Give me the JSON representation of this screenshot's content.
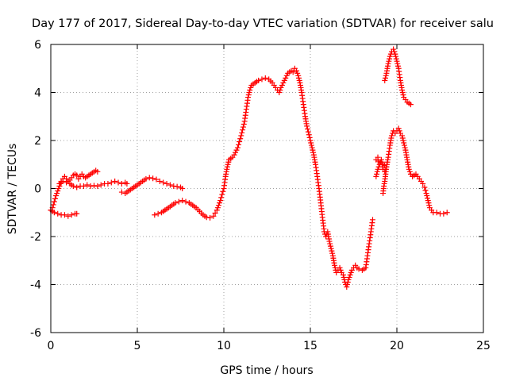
{
  "chart_data": {
    "type": "scatter",
    "title": "Day 177 of 2017, Sidereal Day-to-day VTEC variation (SDTVAR) for receiver salu",
    "xlabel": "GPS time / hours",
    "ylabel": "SDTVAR / TECUs",
    "xlim": [
      0,
      25
    ],
    "ylim": [
      -6,
      6
    ],
    "xticks": [
      0,
      5,
      10,
      15,
      20,
      25
    ],
    "yticks": [
      -6,
      -4,
      -2,
      0,
      2,
      4,
      6
    ],
    "grid": true,
    "marker": "plus",
    "color": "#ff0000",
    "series": [
      {
        "name": "s1",
        "points": [
          [
            0,
            -0.9
          ],
          [
            0.1,
            -0.8
          ],
          [
            0.2,
            -0.55
          ],
          [
            0.3,
            -0.3
          ],
          [
            0.4,
            -0.1
          ],
          [
            0.5,
            0.1
          ],
          [
            0.6,
            0.3
          ],
          [
            0.7,
            0.4
          ],
          [
            0.8,
            0.5
          ],
          [
            0.9,
            0.4
          ],
          [
            1.0,
            0.3
          ],
          [
            1.1,
            0.35
          ],
          [
            1.2,
            0.45
          ],
          [
            1.3,
            0.55
          ],
          [
            1.4,
            0.6
          ],
          [
            1.5,
            0.55
          ],
          [
            1.6,
            0.4
          ],
          [
            1.7,
            0.5
          ],
          [
            1.8,
            0.6
          ],
          [
            1.9,
            0.5
          ],
          [
            2.0,
            0.45
          ],
          [
            2.1,
            0.5
          ],
          [
            2.2,
            0.55
          ],
          [
            2.3,
            0.6
          ],
          [
            2.4,
            0.65
          ],
          [
            2.5,
            0.7
          ],
          [
            2.6,
            0.75
          ],
          [
            2.7,
            0.7
          ]
        ]
      },
      {
        "name": "s2",
        "points": [
          [
            0,
            -0.9
          ],
          [
            0.2,
            -1.0
          ],
          [
            0.4,
            -1.05
          ],
          [
            0.6,
            -1.1
          ],
          [
            0.8,
            -1.1
          ],
          [
            1.0,
            -1.15
          ],
          [
            1.2,
            -1.1
          ],
          [
            1.4,
            -1.05
          ],
          [
            1.5,
            -1.05
          ]
        ]
      },
      {
        "name": "s3",
        "points": [
          [
            0.5,
            0.2
          ],
          [
            0.7,
            0.3
          ],
          [
            0.9,
            0.25
          ],
          [
            1.1,
            0.2
          ],
          [
            1.3,
            0.1
          ],
          [
            1.5,
            0.05
          ],
          [
            1.7,
            0.1
          ],
          [
            1.9,
            0.1
          ],
          [
            2.1,
            0.15
          ],
          [
            2.3,
            0.1
          ],
          [
            2.5,
            0.12
          ],
          [
            2.7,
            0.1
          ],
          [
            2.9,
            0.15
          ],
          [
            3.1,
            0.2
          ],
          [
            3.3,
            0.2
          ],
          [
            3.5,
            0.25
          ],
          [
            3.7,
            0.3
          ],
          [
            3.9,
            0.25
          ],
          [
            4.1,
            0.2
          ],
          [
            4.3,
            0.25
          ],
          [
            4.4,
            0.2
          ]
        ]
      },
      {
        "name": "s4",
        "points": [
          [
            4.1,
            -0.15
          ],
          [
            4.3,
            -0.2
          ],
          [
            4.5,
            -0.1
          ],
          [
            4.7,
            0.0
          ],
          [
            4.9,
            0.1
          ],
          [
            5.1,
            0.2
          ],
          [
            5.3,
            0.3
          ],
          [
            5.5,
            0.4
          ],
          [
            5.7,
            0.45
          ],
          [
            5.9,
            0.42
          ],
          [
            6.1,
            0.38
          ],
          [
            6.3,
            0.3
          ],
          [
            6.5,
            0.25
          ],
          [
            6.7,
            0.2
          ],
          [
            6.9,
            0.15
          ],
          [
            7.1,
            0.1
          ],
          [
            7.3,
            0.08
          ],
          [
            7.5,
            0.05
          ],
          [
            7.6,
            0.0
          ]
        ]
      },
      {
        "name": "s5",
        "points": [
          [
            6.0,
            -1.1
          ],
          [
            6.2,
            -1.05
          ],
          [
            6.4,
            -1.0
          ],
          [
            6.6,
            -0.9
          ],
          [
            6.8,
            -0.8
          ],
          [
            7.0,
            -0.7
          ],
          [
            7.2,
            -0.6
          ],
          [
            7.4,
            -0.55
          ],
          [
            7.6,
            -0.5
          ],
          [
            7.8,
            -0.55
          ],
          [
            8.0,
            -0.6
          ],
          [
            8.2,
            -0.7
          ],
          [
            8.4,
            -0.8
          ],
          [
            8.6,
            -0.95
          ],
          [
            8.8,
            -1.1
          ],
          [
            9.0,
            -1.2
          ],
          [
            9.2,
            -1.22
          ],
          [
            9.4,
            -1.15
          ],
          [
            9.6,
            -0.9
          ],
          [
            9.8,
            -0.5
          ],
          [
            10.0,
            0.0
          ],
          [
            10.1,
            0.5
          ],
          [
            10.2,
            0.9
          ],
          [
            10.3,
            1.2
          ],
          [
            10.5,
            1.3
          ],
          [
            10.6,
            1.4
          ],
          [
            10.8,
            1.7
          ],
          [
            11.0,
            2.2
          ],
          [
            11.2,
            2.8
          ],
          [
            11.3,
            3.3
          ],
          [
            11.4,
            3.8
          ],
          [
            11.5,
            4.1
          ],
          [
            11.6,
            4.3
          ],
          [
            11.8,
            4.4
          ],
          [
            12.0,
            4.5
          ],
          [
            12.2,
            4.55
          ],
          [
            12.4,
            4.6
          ],
          [
            12.6,
            4.55
          ],
          [
            12.8,
            4.4
          ],
          [
            13.0,
            4.2
          ],
          [
            13.1,
            4.1
          ],
          [
            13.2,
            4.0
          ],
          [
            13.3,
            4.2
          ],
          [
            13.5,
            4.5
          ],
          [
            13.7,
            4.8
          ],
          [
            13.9,
            4.9
          ],
          [
            14.0,
            4.85
          ],
          [
            14.1,
            5.0
          ],
          [
            14.2,
            4.9
          ],
          [
            14.3,
            4.7
          ],
          [
            14.4,
            4.4
          ],
          [
            14.5,
            4.0
          ],
          [
            14.6,
            3.5
          ],
          [
            14.7,
            3.0
          ],
          [
            14.8,
            2.6
          ],
          [
            15.0,
            2.0
          ],
          [
            15.1,
            1.7
          ],
          [
            15.2,
            1.4
          ],
          [
            15.3,
            1.0
          ],
          [
            15.4,
            0.5
          ],
          [
            15.5,
            0.0
          ],
          [
            15.6,
            -0.6
          ],
          [
            15.7,
            -1.2
          ],
          [
            15.8,
            -1.8
          ],
          [
            15.9,
            -2.0
          ],
          [
            16.0,
            -1.8
          ],
          [
            16.1,
            -2.2
          ],
          [
            16.2,
            -2.5
          ],
          [
            16.3,
            -2.8
          ],
          [
            16.4,
            -3.2
          ],
          [
            16.5,
            -3.5
          ],
          [
            16.6,
            -3.4
          ],
          [
            16.7,
            -3.3
          ],
          [
            16.8,
            -3.5
          ],
          [
            16.9,
            -3.6
          ],
          [
            17.0,
            -3.9
          ],
          [
            17.1,
            -4.1
          ],
          [
            17.2,
            -3.8
          ],
          [
            17.3,
            -3.6
          ],
          [
            17.4,
            -3.4
          ],
          [
            17.5,
            -3.3
          ],
          [
            17.6,
            -3.2
          ],
          [
            17.7,
            -3.3
          ],
          [
            17.8,
            -3.35
          ],
          [
            18.0,
            -3.4
          ],
          [
            18.2,
            -3.3
          ],
          [
            18.3,
            -2.8
          ],
          [
            18.4,
            -2.3
          ],
          [
            18.5,
            -1.8
          ],
          [
            18.6,
            -1.3
          ]
        ]
      },
      {
        "name": "s6",
        "points": [
          [
            18.8,
            0.5
          ],
          [
            18.9,
            0.8
          ],
          [
            19.0,
            1.0
          ],
          [
            19.1,
            1.2
          ],
          [
            19.2,
            0.8
          ],
          [
            19.3,
            0.7
          ],
          [
            19.4,
            0.9
          ],
          [
            19.5,
            1.3
          ],
          [
            19.6,
            1.8
          ],
          [
            19.7,
            2.2
          ],
          [
            19.8,
            2.4
          ],
          [
            19.9,
            2.3
          ],
          [
            20.0,
            2.4
          ],
          [
            20.1,
            2.5
          ],
          [
            20.2,
            2.3
          ],
          [
            20.3,
            2.2
          ],
          [
            20.4,
            1.9
          ],
          [
            20.5,
            1.6
          ],
          [
            20.6,
            1.2
          ],
          [
            20.7,
            0.8
          ],
          [
            20.8,
            0.6
          ],
          [
            20.9,
            0.5
          ],
          [
            21.0,
            0.55
          ],
          [
            21.1,
            0.6
          ],
          [
            21.3,
            0.4
          ],
          [
            21.4,
            0.3
          ],
          [
            21.5,
            0.2
          ],
          [
            21.6,
            0.05
          ],
          [
            21.7,
            -0.2
          ],
          [
            21.8,
            -0.5
          ],
          [
            21.9,
            -0.8
          ],
          [
            22.0,
            -0.9
          ],
          [
            22.1,
            -1.0
          ],
          [
            22.3,
            -1.0
          ],
          [
            22.5,
            -1.05
          ],
          [
            22.7,
            -1.05
          ],
          [
            22.9,
            -1.0
          ]
        ]
      },
      {
        "name": "s7",
        "points": [
          [
            19.2,
            -0.2
          ],
          [
            19.25,
            0.1
          ],
          [
            19.3,
            0.3
          ],
          [
            19.35,
            0.6
          ],
          [
            19.4,
            0.9
          ],
          [
            18.8,
            1.2
          ],
          [
            18.9,
            1.3
          ]
        ]
      },
      {
        "name": "s8",
        "points": [
          [
            19.3,
            4.5
          ],
          [
            19.4,
            4.8
          ],
          [
            19.5,
            5.2
          ],
          [
            19.6,
            5.5
          ],
          [
            19.7,
            5.7
          ],
          [
            19.8,
            5.8
          ],
          [
            19.9,
            5.6
          ],
          [
            20.0,
            5.3
          ],
          [
            20.1,
            5.0
          ],
          [
            20.2,
            4.5
          ],
          [
            20.3,
            4.1
          ],
          [
            20.4,
            3.8
          ],
          [
            20.5,
            3.7
          ],
          [
            20.6,
            3.6
          ],
          [
            20.7,
            3.55
          ],
          [
            20.8,
            3.5
          ]
        ]
      }
    ]
  }
}
